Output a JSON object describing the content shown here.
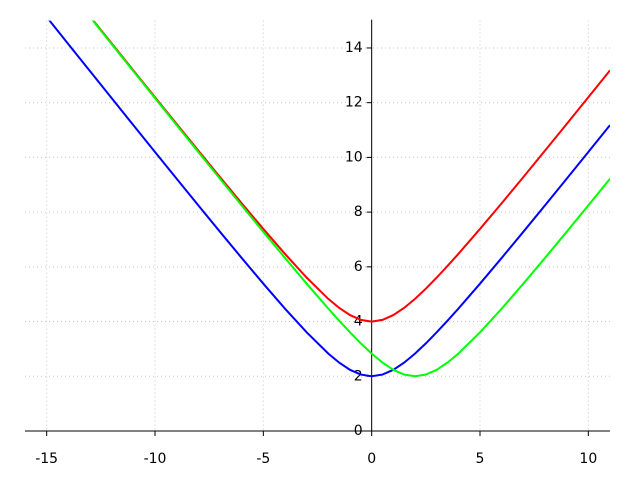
{
  "chart_data": {
    "type": "line",
    "x": [
      -15,
      -14,
      -13,
      -12,
      -11,
      -10,
      -9,
      -8,
      -7,
      -6,
      -5,
      -4,
      -3,
      -2,
      -1.5,
      -1,
      -0.5,
      0,
      0.5,
      1,
      1.5,
      2,
      2.5,
      3,
      3.5,
      4,
      5,
      6,
      7,
      8,
      9,
      10,
      11
    ],
    "series": [
      {
        "color": "#ff0000",
        "values": [
          null,
          null,
          15.153,
          14.166,
          13.18,
          12.198,
          11.22,
          10.246,
          9.28,
          8.325,
          7.385,
          6.472,
          5.606,
          4.828,
          4.5,
          4.236,
          4.062,
          4,
          4.062,
          4.236,
          4.5,
          4.828,
          5.202,
          5.606,
          6.031,
          6.472,
          7.385,
          8.325,
          9.28,
          10.246,
          11.22,
          12.198,
          13.18
        ]
      },
      {
        "color": "#0000ff",
        "values": [
          15.133,
          14.142,
          13.153,
          12.166,
          11.18,
          10.198,
          9.22,
          8.246,
          7.28,
          6.325,
          5.385,
          4.472,
          3.606,
          2.828,
          2.5,
          2.236,
          2.062,
          2,
          2.062,
          2.236,
          2.5,
          2.828,
          3.202,
          3.606,
          4.031,
          4.472,
          5.385,
          6.325,
          7.28,
          8.246,
          9.22,
          10.198,
          11.18
        ]
      },
      {
        "color": "#00ff00",
        "values": [
          null,
          null,
          15.133,
          14.142,
          13.153,
          12.166,
          11.18,
          10.198,
          9.22,
          8.246,
          7.28,
          6.325,
          5.385,
          4.472,
          4.031,
          3.606,
          3.202,
          2.828,
          2.5,
          2.236,
          2.062,
          2,
          2.062,
          2.236,
          2.5,
          2.828,
          3.606,
          4.472,
          5.385,
          6.325,
          7.28,
          8.246,
          9.22
        ]
      }
    ],
    "xlim": [
      -16,
      11
    ],
    "ylim": [
      0,
      15
    ],
    "xticks": [
      -15,
      -10,
      -5,
      0,
      5,
      10
    ],
    "yticks": [
      0,
      2,
      4,
      6,
      8,
      10,
      12,
      14
    ],
    "grid": true
  }
}
